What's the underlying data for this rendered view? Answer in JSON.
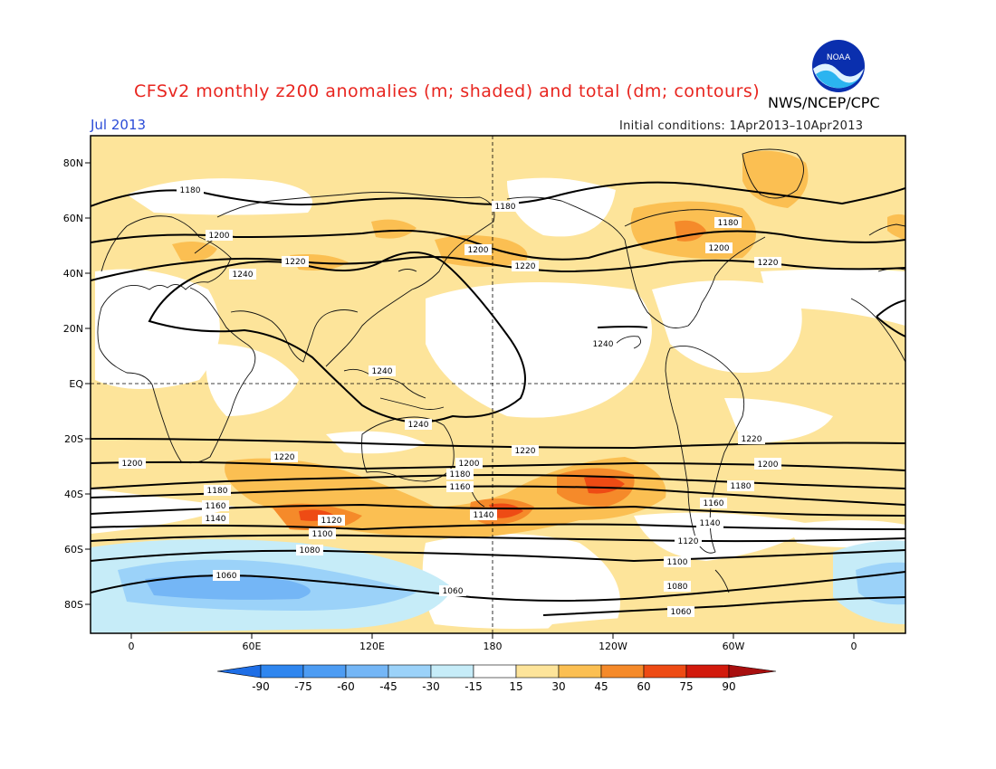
{
  "title": "CFSv2 monthly z200 anomalies (m; shaded) and total (dm; contours)",
  "agency": "NWS/NCEP/CPC",
  "logo_text": "NOAA",
  "month": "Jul 2013",
  "initial_conditions": "Initial conditions: 1Apr2013–10Apr2013",
  "map": {
    "lat_labels": [
      "80N",
      "60N",
      "40N",
      "20N",
      "EQ",
      "20S",
      "40S",
      "60S",
      "80S"
    ],
    "lon_labels": [
      "0",
      "60E",
      "120E",
      "180",
      "120W",
      "60W",
      "0"
    ],
    "contour_labels": [
      "1180",
      "1200",
      "1240",
      "1220",
      "1180",
      "1200",
      "1220",
      "1180",
      "1200",
      "1220",
      "1240",
      "1240",
      "1240",
      "1220",
      "1200",
      "1220",
      "1200",
      "1180",
      "1160",
      "1140",
      "1120",
      "1100",
      "1080",
      "1060",
      "1200",
      "1220",
      "1200",
      "1180",
      "1160",
      "1140",
      "1120",
      "1100",
      "1080",
      "1060",
      "1060",
      "1140",
      "1180",
      "1160",
      "1140",
      "1120",
      "1100",
      "1080",
      "1060"
    ]
  },
  "colorbar": {
    "ticks": [
      "-90",
      "-75",
      "-60",
      "-45",
      "-30",
      "-15",
      "15",
      "30",
      "45",
      "60",
      "75",
      "90"
    ],
    "colors": [
      "#1e6ee6",
      "#2f86ef",
      "#4d9cf3",
      "#74b6f6",
      "#9bd2f9",
      "#c6ecf8",
      "#ffffff",
      "#fde49a",
      "#fbbf52",
      "#f58a2a",
      "#ee4b14",
      "#d21a0c",
      "#a80f0f"
    ]
  },
  "palette": {
    "ocean_bg": "#ffffff",
    "anom_30": "#fde49a",
    "anom_45": "#fbbf52",
    "anom_60": "#f58a2a",
    "anom_75": "#ee4b14",
    "anom_neg30": "#c6ecf8",
    "anom_neg45": "#9bd2f9",
    "anom_neg60": "#74b6f6"
  }
}
